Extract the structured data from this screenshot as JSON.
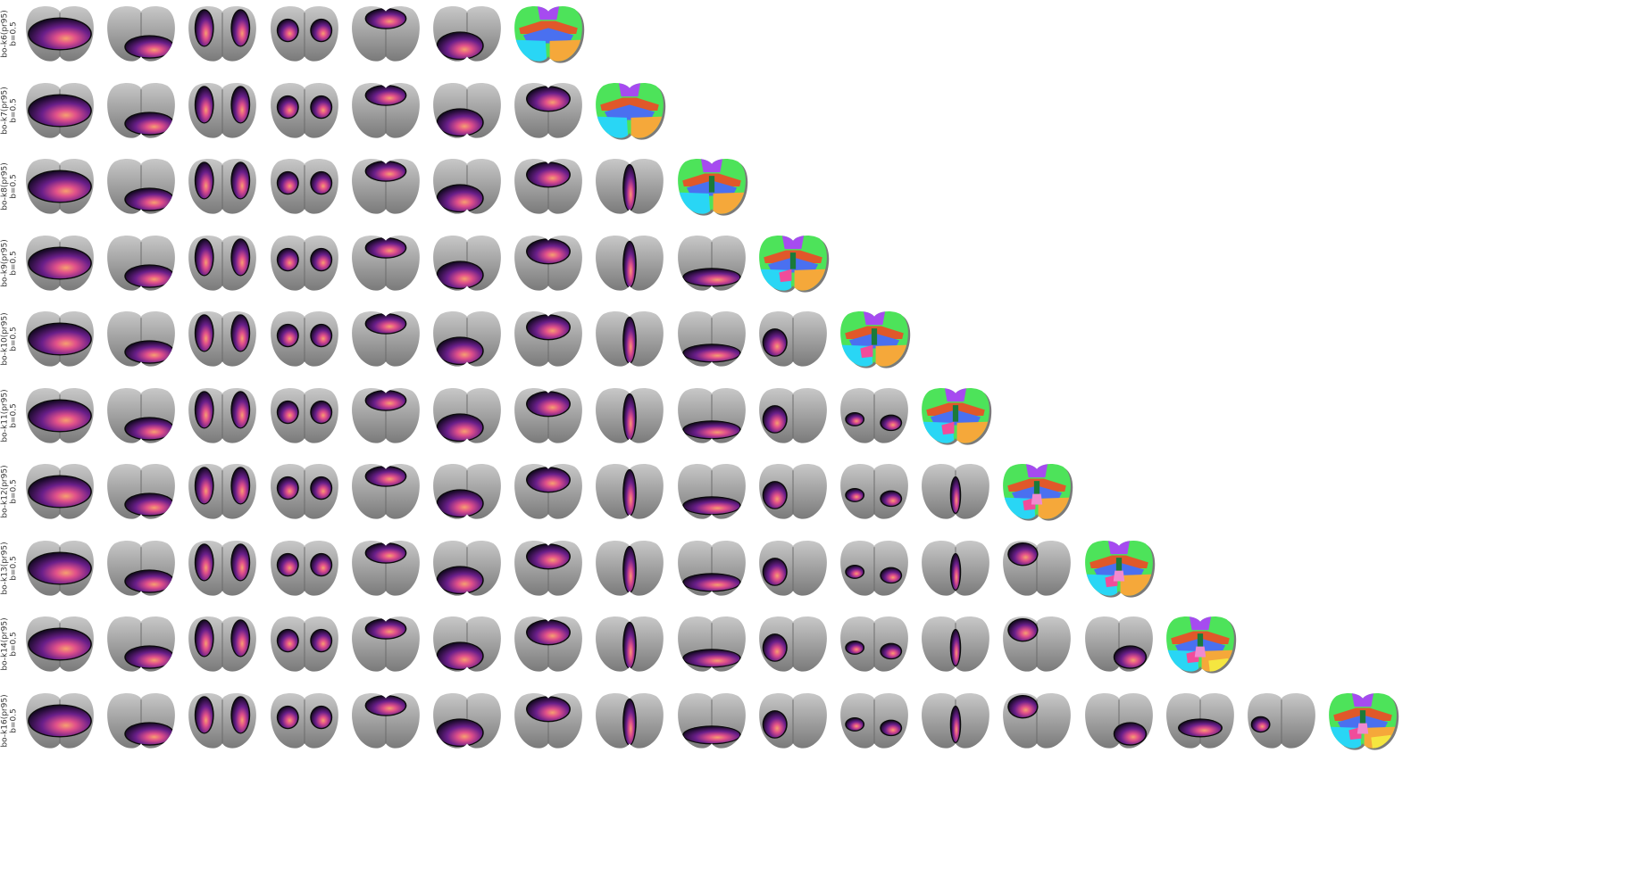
{
  "figure": {
    "rows": [
      {
        "label": "bo-k6(pr95)",
        "sublabel": "b=0.5",
        "k": 6
      },
      {
        "label": "bo-k7(pr95)",
        "sublabel": "b=0.5",
        "k": 7
      },
      {
        "label": "bo-k8(pr95)",
        "sublabel": "b=0.5",
        "k": 8
      },
      {
        "label": "bo-k9(pr95)",
        "sublabel": "b=0.5",
        "k": 9
      },
      {
        "label": "bo-k10(pr95)",
        "sublabel": "b=0.5",
        "k": 10
      },
      {
        "label": "bo-k11(pr95)",
        "sublabel": "b=0.5",
        "k": 11
      },
      {
        "label": "bo-k12(pr95)",
        "sublabel": "b=0.5",
        "k": 12
      },
      {
        "label": "bo-k13(pr95)",
        "sublabel": "b=0.5",
        "k": 13
      },
      {
        "label": "bo-k14(pr95)",
        "sublabel": "b=0.5",
        "k": 14
      },
      {
        "label": "bo-k16(pr95)",
        "sublabel": "b=0.5",
        "k": 16
      }
    ],
    "cluster_patterns": [
      "whole-cortex",
      "posterior",
      "lateral-stripes",
      "bilateral-spots",
      "anterior-midline",
      "posterior-left",
      "anterior-wide",
      "midline",
      "posterior-band",
      "left-spot",
      "bilateral-small",
      "midline-narrow",
      "anterior-left",
      "posterior-right",
      "posterior-mid",
      "small-left"
    ],
    "colors": {
      "brain_light": "#c8c8c8",
      "brain_dark": "#7a7a7a",
      "cluster_dark": "#1a0a2a",
      "cluster_mid": "#6a1f8a",
      "cluster_bright": "#e0508a",
      "cluster_peak": "#f6a070",
      "outline": "#0a0a0a",
      "segmentation": [
        "#4de35a",
        "#a64bf0",
        "#e0582a",
        "#4a70f0",
        "#29d6f5",
        "#f5a83a",
        "#f04c9a",
        "#f5e640",
        "#1a7a3a",
        "#f08ad0"
      ]
    }
  }
}
